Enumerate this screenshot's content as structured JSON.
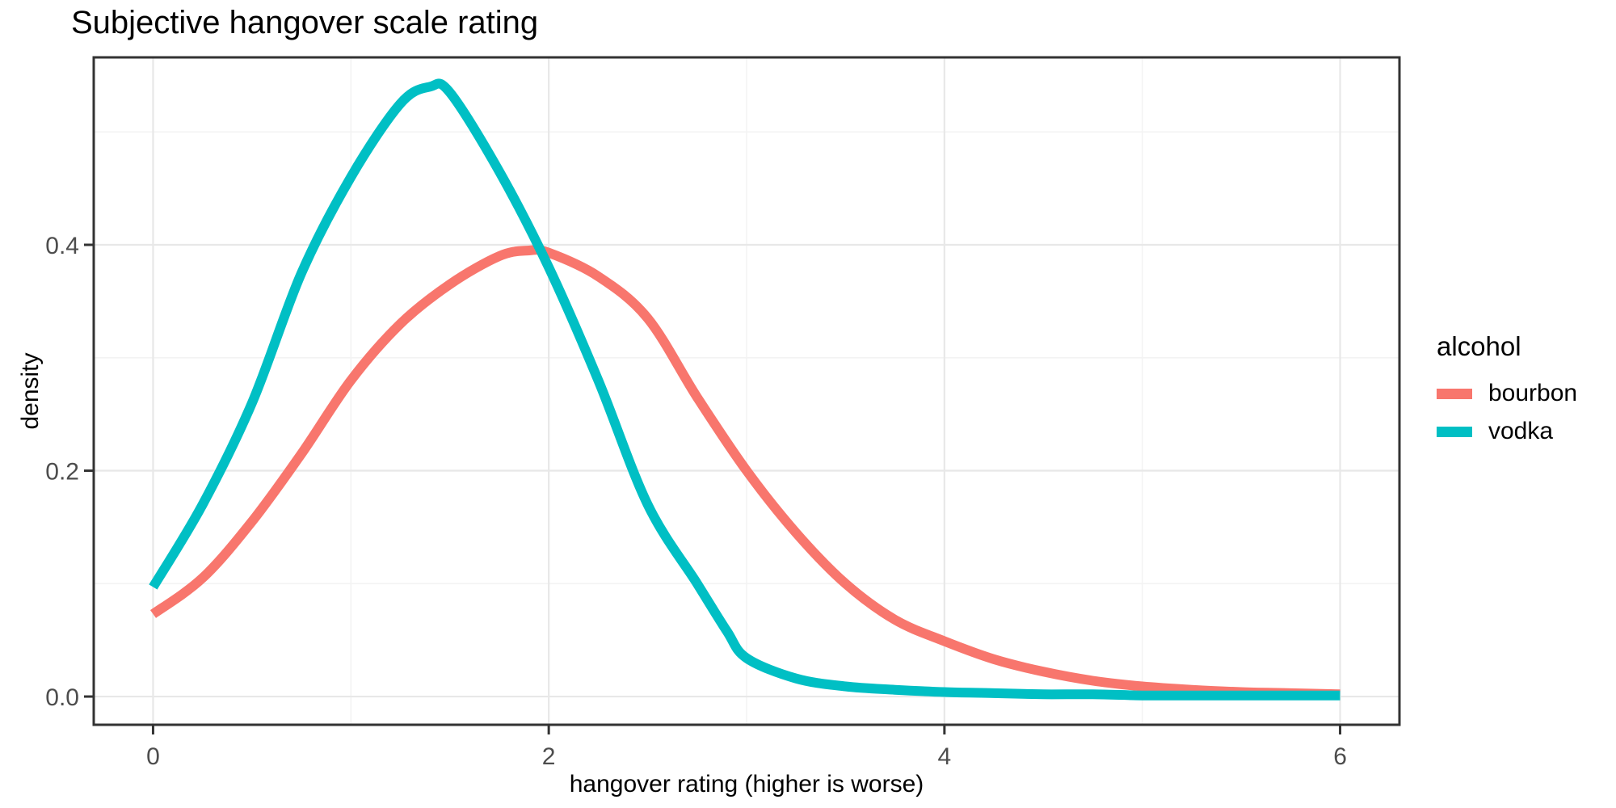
{
  "chart_data": {
    "type": "line",
    "title": "Subjective hangover scale rating",
    "xlabel": "hangover rating (higher is worse)",
    "ylabel": "density",
    "legend_title": "alcohol",
    "legend_position": "right",
    "grid": true,
    "xlim": [
      -0.3,
      6.3
    ],
    "ylim": [
      -0.025,
      0.566
    ],
    "x_major_ticks": [
      0,
      2,
      4,
      6
    ],
    "x_tick_labels": [
      "0",
      "2",
      "4",
      "6"
    ],
    "x_minor_ticks": [
      1,
      3,
      5
    ],
    "y_major_ticks": [
      0,
      0.2,
      0.4
    ],
    "y_tick_labels": [
      "0.0",
      "0.2",
      "0.4"
    ],
    "y_minor_ticks": [
      0.1,
      0.3,
      0.5
    ],
    "grid_color_major": "#E8E8E8",
    "grid_color_minor": "#F3F3F3",
    "border_color": "#333333",
    "tick_color": "#333333",
    "tick_label_color": "#4D4D4D",
    "line_width": 12,
    "series": [
      {
        "name": "bourbon",
        "color": "#F8766D",
        "x": [
          0,
          0.25,
          0.5,
          0.75,
          1,
          1.25,
          1.5,
          1.75,
          1.9,
          2,
          2.25,
          2.5,
          2.75,
          3,
          3.25,
          3.5,
          3.75,
          4,
          4.25,
          4.5,
          4.75,
          5,
          5.25,
          5.5,
          5.75,
          6
        ],
        "y": [
          0.073,
          0.105,
          0.155,
          0.215,
          0.28,
          0.33,
          0.365,
          0.39,
          0.395,
          0.393,
          0.372,
          0.335,
          0.265,
          0.2,
          0.145,
          0.1,
          0.068,
          0.049,
          0.033,
          0.022,
          0.014,
          0.009,
          0.006,
          0.004,
          0.003,
          0.002
        ]
      },
      {
        "name": "vodka",
        "color": "#00BFC4",
        "x": [
          0,
          0.25,
          0.5,
          0.75,
          1,
          1.25,
          1.4,
          1.5,
          1.75,
          2,
          2.25,
          2.5,
          2.75,
          2.9,
          3,
          3.25,
          3.5,
          3.75,
          4,
          4.25,
          4.5,
          4.75,
          5,
          5.25,
          5.5,
          5.75,
          6
        ],
        "y": [
          0.097,
          0.17,
          0.26,
          0.375,
          0.46,
          0.525,
          0.54,
          0.535,
          0.465,
          0.38,
          0.28,
          0.17,
          0.1,
          0.058,
          0.034,
          0.016,
          0.009,
          0.006,
          0.004,
          0.003,
          0.002,
          0.002,
          0.001,
          0.001,
          0.001,
          0.001,
          0.001
        ]
      }
    ]
  }
}
